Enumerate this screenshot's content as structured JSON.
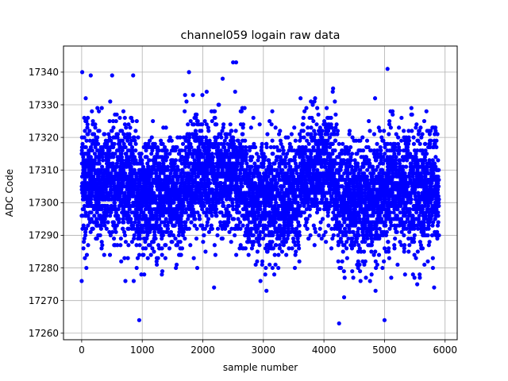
{
  "chart_data": {
    "type": "scatter",
    "title": "channel059 logain raw data",
    "xlabel": "sample number",
    "ylabel": "ADC Code",
    "xlim": [
      -300,
      6200
    ],
    "ylim": [
      17258,
      17348
    ],
    "xticks": [
      0,
      1000,
      2000,
      3000,
      4000,
      5000,
      6000
    ],
    "yticks": [
      17260,
      17270,
      17280,
      17290,
      17300,
      17310,
      17320,
      17330,
      17340
    ],
    "grid": true,
    "point_color": "#0000ff",
    "n_points": 5900,
    "distribution": {
      "center": 17305,
      "core_range": [
        17285,
        17325
      ],
      "outlier_range": [
        17263,
        17343
      ]
    },
    "notable_points": [
      {
        "x": 0,
        "y": 17276
      },
      {
        "x": 150,
        "y": 17339
      },
      {
        "x": 850,
        "y": 17339
      },
      {
        "x": 950,
        "y": 17264
      },
      {
        "x": 2500,
        "y": 17343
      },
      {
        "x": 2550,
        "y": 17343
      },
      {
        "x": 4250,
        "y": 17263
      },
      {
        "x": 5050,
        "y": 17341
      },
      {
        "x": 5000,
        "y": 17264
      }
    ],
    "segments": [
      {
        "x_start": 0,
        "x_end": 900,
        "center": 17306
      },
      {
        "x_start": 900,
        "x_end": 1700,
        "center": 17302
      },
      {
        "x_start": 1700,
        "x_end": 2700,
        "center": 17308
      },
      {
        "x_start": 2700,
        "x_end": 3600,
        "center": 17302
      },
      {
        "x_start": 3600,
        "x_end": 4200,
        "center": 17309
      },
      {
        "x_start": 4200,
        "x_end": 4900,
        "center": 17301
      },
      {
        "x_start": 4900,
        "x_end": 5900,
        "center": 17304
      }
    ]
  }
}
